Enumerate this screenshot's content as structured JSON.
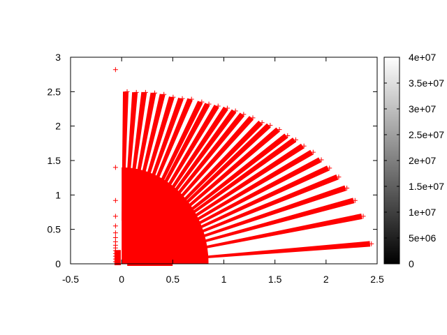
{
  "chart_data": {
    "type": "scatter",
    "title": "",
    "xlabel": "",
    "ylabel": "",
    "xlim": [
      -0.5,
      2.5
    ],
    "ylim": [
      0,
      3
    ],
    "grid": false,
    "legend": "none",
    "marker": "plus",
    "marker_color": "#ff0000",
    "x_ticks": [
      "-0.5",
      "0",
      "0.5",
      "1",
      "1.5",
      "2",
      "2.5"
    ],
    "y_ticks": [
      "0",
      "0.5",
      "1",
      "1.5",
      "2",
      "2.5",
      "3"
    ],
    "core_region": {
      "x_extent": 0.85,
      "y_extent": 1.4
    },
    "ray_endpoints": [
      [
        0.04,
        2.5
      ],
      [
        0.13,
        2.49
      ],
      [
        0.22,
        2.49
      ],
      [
        0.31,
        2.48
      ],
      [
        0.4,
        2.46
      ],
      [
        0.49,
        2.42
      ],
      [
        0.58,
        2.4
      ],
      [
        0.67,
        2.39
      ],
      [
        0.77,
        2.35
      ],
      [
        0.84,
        2.32
      ],
      [
        0.93,
        2.29
      ],
      [
        1.02,
        2.26
      ],
      [
        1.1,
        2.22
      ],
      [
        1.18,
        2.17
      ],
      [
        1.27,
        2.12
      ],
      [
        1.36,
        2.05
      ],
      [
        1.44,
        2.01
      ],
      [
        1.53,
        1.95
      ],
      [
        1.61,
        1.86
      ],
      [
        1.69,
        1.8
      ],
      [
        1.77,
        1.71
      ],
      [
        1.86,
        1.62
      ],
      [
        1.94,
        1.51
      ],
      [
        2.02,
        1.39
      ],
      [
        2.11,
        1.26
      ],
      [
        2.19,
        1.1
      ],
      [
        2.27,
        0.92
      ],
      [
        2.35,
        0.69
      ],
      [
        2.43,
        0.29
      ]
    ],
    "left_column_points": [
      [
        -0.06,
        2.82
      ],
      [
        -0.06,
        1.4
      ],
      [
        -0.06,
        0.92
      ],
      [
        -0.06,
        0.69
      ],
      [
        -0.06,
        0.55
      ],
      [
        -0.06,
        0.45
      ],
      [
        -0.06,
        0.38
      ],
      [
        -0.06,
        0.32
      ],
      [
        -0.06,
        0.27
      ],
      [
        -0.06,
        0.23
      ],
      [
        -0.06,
        0.19
      ],
      [
        -0.06,
        0.15
      ],
      [
        -0.06,
        0.11
      ],
      [
        -0.06,
        0.07
      ],
      [
        -0.06,
        0.03
      ]
    ],
    "colorbar": {
      "range": [
        0,
        40000000
      ],
      "colors": [
        "#000000",
        "#ffffff"
      ],
      "tick_labels": [
        "0",
        "5e+06",
        "1e+07",
        "1.5e+07",
        "2e+07",
        "2.5e+07",
        "3e+07",
        "3.5e+07",
        "4e+07"
      ]
    }
  }
}
